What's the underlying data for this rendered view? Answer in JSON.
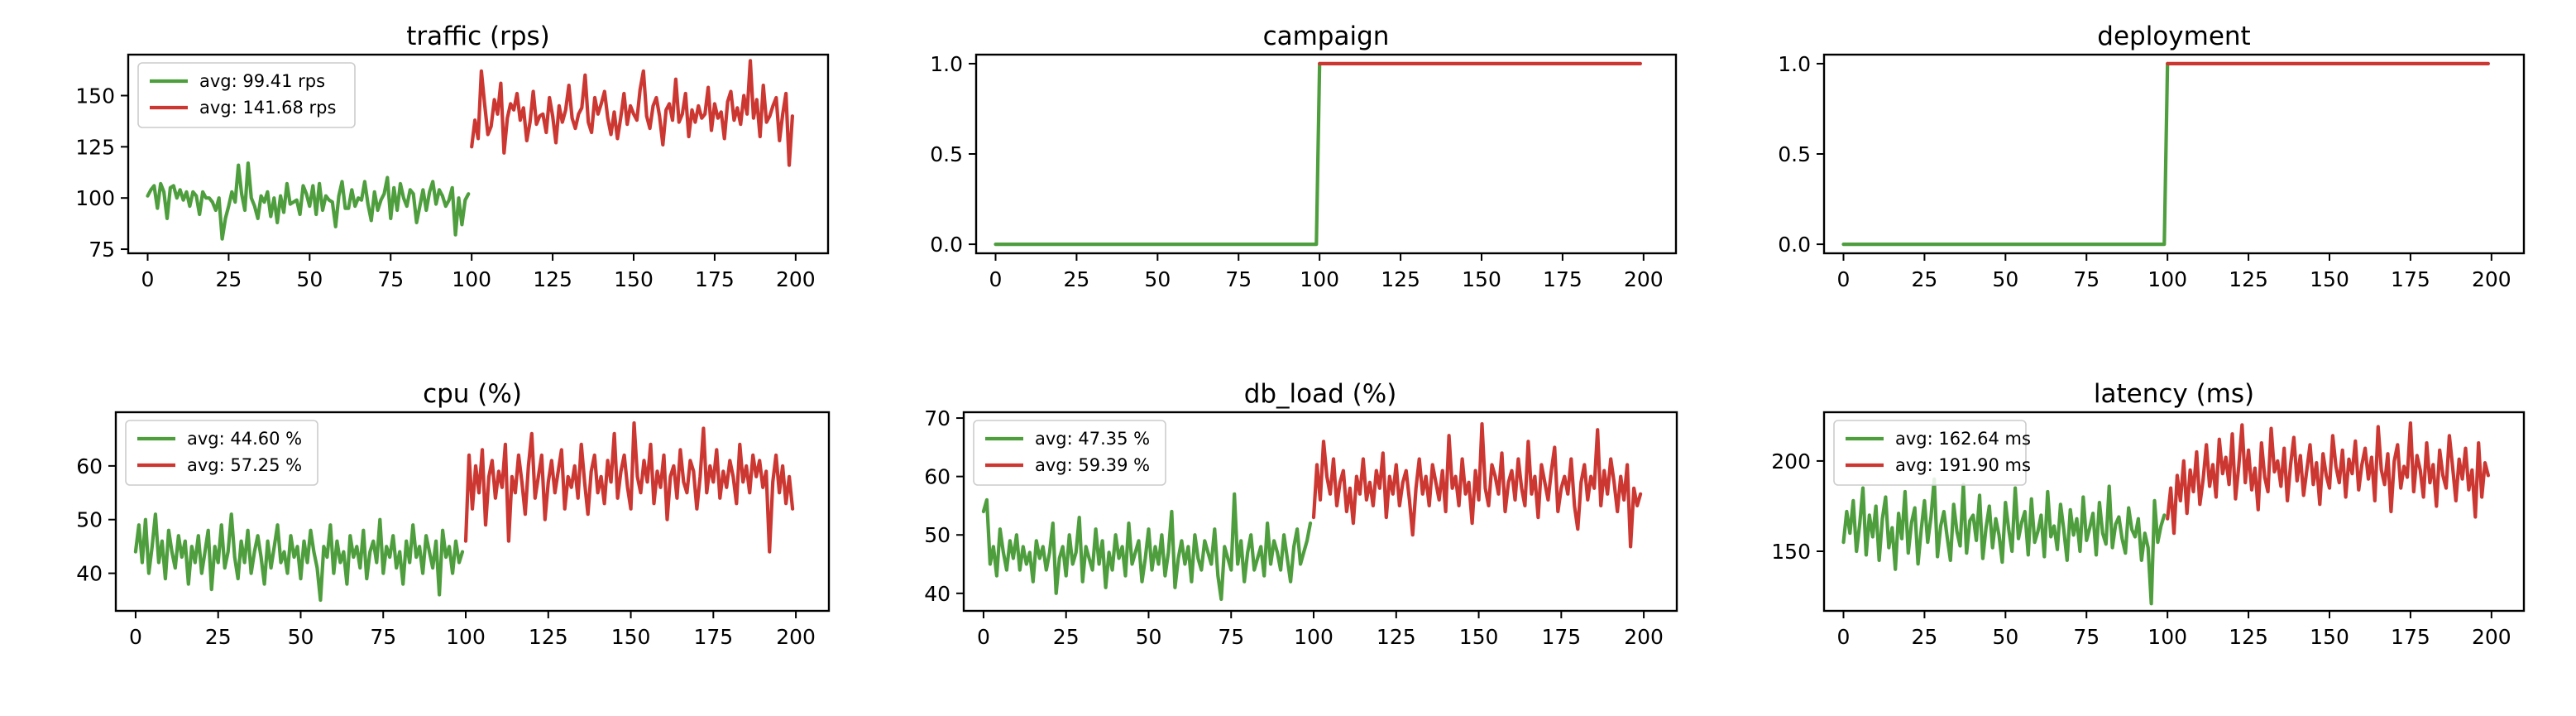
{
  "colors": {
    "before": "#4e9e3e",
    "after": "#cc3732"
  },
  "chart_data": [
    {
      "type": "line",
      "title": "traffic (rps)",
      "xlim": [
        -6,
        210
      ],
      "ylim": [
        73,
        170
      ],
      "xticks": [
        0,
        25,
        50,
        75,
        100,
        125,
        150,
        175,
        200
      ],
      "yticks": [
        75,
        100,
        125,
        150
      ],
      "legend": "top-left",
      "series": [
        {
          "name": "avg: 99.41 rps",
          "color": "#4e9e3e",
          "x_start": 0,
          "values": [
            101,
            104,
            106,
            95,
            107,
            103,
            90,
            105,
            106,
            100,
            104,
            99,
            103,
            96,
            103,
            101,
            92,
            103,
            100,
            100,
            98,
            94,
            100,
            80,
            90,
            96,
            103,
            98,
            116,
            102,
            94,
            117,
            100,
            96,
            90,
            101,
            98,
            103,
            91,
            100,
            88,
            101,
            93,
            107,
            97,
            98,
            99,
            92,
            106,
            102,
            96,
            106,
            92,
            107,
            94,
            101,
            99,
            98,
            86,
            101,
            108,
            95,
            95,
            104,
            96,
            100,
            99,
            108,
            97,
            89,
            103,
            94,
            99,
            102,
            110,
            90,
            105,
            94,
            107,
            100,
            96,
            104,
            102,
            88,
            96,
            104,
            94,
            103,
            108,
            97,
            104,
            101,
            96,
            99,
            105,
            82,
            100,
            87,
            99,
            102
          ]
        },
        {
          "name": "avg: 141.68 rps",
          "color": "#cc3732",
          "x_start": 100,
          "values": [
            125,
            138,
            129,
            162,
            146,
            131,
            135,
            148,
            141,
            156,
            122,
            139,
            146,
            143,
            151,
            138,
            144,
            128,
            137,
            152,
            136,
            140,
            141,
            132,
            149,
            140,
            127,
            145,
            137,
            143,
            155,
            139,
            134,
            141,
            144,
            160,
            137,
            132,
            149,
            141,
            146,
            152,
            139,
            131,
            142,
            129,
            139,
            151,
            136,
            145,
            141,
            138,
            153,
            162,
            140,
            134,
            145,
            149,
            140,
            126,
            143,
            146,
            138,
            158,
            137,
            141,
            151,
            130,
            143,
            137,
            145,
            139,
            141,
            154,
            133,
            146,
            139,
            142,
            129,
            147,
            152,
            138,
            144,
            136,
            150,
            141,
            167,
            139,
            148,
            130,
            155,
            137,
            140,
            145,
            149,
            128,
            141,
            151,
            116,
            140
          ]
        }
      ]
    },
    {
      "type": "line",
      "title": "campaign",
      "xlim": [
        -6,
        210
      ],
      "ylim": [
        -0.05,
        1.05
      ],
      "xticks": [
        0,
        25,
        50,
        75,
        100,
        125,
        150,
        175,
        200
      ],
      "yticks": [
        0.0,
        0.5,
        1.0
      ],
      "ytick_labels": [
        "0.0",
        "0.5",
        "1.0"
      ],
      "series": [
        {
          "color": "#4e9e3e",
          "points": [
            [
              0,
              0
            ],
            [
              99,
              0
            ],
            [
              100,
              1
            ]
          ]
        },
        {
          "color": "#cc3732",
          "points": [
            [
              100,
              1
            ],
            [
              199,
              1
            ]
          ]
        }
      ]
    },
    {
      "type": "line",
      "title": "deployment",
      "xlim": [
        -6,
        210
      ],
      "ylim": [
        -0.05,
        1.05
      ],
      "xticks": [
        0,
        25,
        50,
        75,
        100,
        125,
        150,
        175,
        200
      ],
      "yticks": [
        0.0,
        0.5,
        1.0
      ],
      "ytick_labels": [
        "0.0",
        "0.5",
        "1.0"
      ],
      "series": [
        {
          "color": "#4e9e3e",
          "points": [
            [
              0,
              0
            ],
            [
              99,
              0
            ],
            [
              100,
              1
            ]
          ]
        },
        {
          "color": "#cc3732",
          "points": [
            [
              100,
              1
            ],
            [
              199,
              1
            ]
          ]
        }
      ]
    },
    {
      "type": "line",
      "title": "cpu (%)",
      "xlim": [
        -6,
        210
      ],
      "ylim": [
        33,
        70
      ],
      "xticks": [
        0,
        25,
        50,
        75,
        100,
        125,
        150,
        175,
        200
      ],
      "yticks": [
        40,
        50,
        60
      ],
      "legend": "top-left",
      "series": [
        {
          "name": "avg: 44.60 %",
          "color": "#4e9e3e",
          "x_start": 0,
          "values": [
            44,
            49,
            42,
            50,
            40,
            45,
            51,
            42,
            46,
            39,
            48,
            44,
            41,
            47,
            43,
            46,
            38,
            45,
            42,
            47,
            40,
            44,
            48,
            37,
            45,
            42,
            49,
            41,
            44,
            51,
            43,
            39,
            46,
            42,
            48,
            40,
            44,
            47,
            43,
            38,
            46,
            41,
            45,
            49,
            42,
            44,
            40,
            47,
            43,
            45,
            39,
            46,
            42,
            48,
            44,
            41,
            35,
            45,
            43,
            49,
            40,
            46,
            42,
            44,
            38,
            47,
            43,
            45,
            41,
            48,
            39,
            44,
            46,
            42,
            50,
            40,
            45,
            43,
            47,
            41,
            44,
            38,
            46,
            42,
            49,
            43,
            45,
            40,
            47,
            44,
            41,
            46,
            36,
            48,
            43,
            45,
            40,
            46,
            42,
            44
          ]
        },
        {
          "name": "avg: 57.25 %",
          "color": "#cc3732",
          "x_start": 100,
          "values": [
            46,
            62,
            52,
            60,
            55,
            63,
            49,
            58,
            61,
            54,
            59,
            56,
            64,
            46,
            58,
            55,
            62,
            57,
            51,
            60,
            66,
            54,
            58,
            62,
            50,
            57,
            61,
            55,
            59,
            63,
            52,
            58,
            56,
            60,
            54,
            64,
            57,
            51,
            59,
            62,
            55,
            58,
            53,
            61,
            57,
            66,
            54,
            59,
            62,
            56,
            52,
            68,
            58,
            55,
            61,
            57,
            64,
            53,
            59,
            56,
            62,
            50,
            58,
            60,
            54,
            63,
            57,
            55,
            61,
            59,
            52,
            58,
            67,
            55,
            60,
            57,
            63,
            54,
            59,
            56,
            61,
            58,
            53,
            64,
            57,
            60,
            55,
            62,
            58,
            61,
            56,
            59,
            44,
            57,
            62,
            55,
            60,
            53,
            58,
            52
          ]
        }
      ]
    },
    {
      "type": "line",
      "title": "db_load (%)",
      "xlim": [
        -6,
        210
      ],
      "ylim": [
        37,
        71
      ],
      "xticks": [
        0,
        25,
        50,
        75,
        100,
        125,
        150,
        175,
        200
      ],
      "yticks": [
        40,
        50,
        60,
        70
      ],
      "legend": "top-left",
      "series": [
        {
          "name": "avg: 47.35 %",
          "color": "#4e9e3e",
          "x_start": 0,
          "values": [
            54,
            56,
            45,
            48,
            43,
            51,
            47,
            44,
            49,
            46,
            50,
            44,
            48,
            45,
            47,
            42,
            49,
            46,
            48,
            44,
            47,
            52,
            40,
            46,
            48,
            43,
            50,
            45,
            47,
            53,
            42,
            48,
            46,
            44,
            51,
            45,
            49,
            41,
            47,
            44,
            50,
            46,
            48,
            43,
            52,
            45,
            47,
            49,
            42,
            46,
            51,
            44,
            48,
            45,
            50,
            43,
            47,
            54,
            41,
            46,
            49,
            45,
            48,
            42,
            50,
            46,
            44,
            49,
            47,
            45,
            51,
            43,
            39,
            48,
            46,
            44,
            57,
            45,
            49,
            42,
            47,
            50,
            44,
            46,
            48,
            43,
            52,
            45,
            49,
            47,
            44,
            50,
            46,
            42,
            48,
            51,
            45,
            47,
            49,
            52
          ]
        },
        {
          "name": "avg: 59.39 %",
          "color": "#cc3732",
          "x_start": 100,
          "values": [
            53,
            62,
            56,
            66,
            60,
            57,
            63,
            55,
            59,
            61,
            54,
            58,
            52,
            60,
            57,
            63,
            56,
            59,
            55,
            61,
            58,
            64,
            53,
            60,
            57,
            62,
            55,
            59,
            61,
            56,
            50,
            58,
            63,
            57,
            60,
            55,
            62,
            59,
            56,
            61,
            54,
            67,
            58,
            60,
            55,
            63,
            57,
            59,
            52,
            61,
            56,
            69,
            58,
            55,
            62,
            60,
            57,
            64,
            54,
            59,
            61,
            56,
            63,
            58,
            55,
            66,
            57,
            60,
            53,
            62,
            59,
            56,
            61,
            65,
            54,
            58,
            60,
            57,
            63,
            55,
            51,
            59,
            62,
            56,
            60,
            58,
            68,
            55,
            61,
            57,
            63,
            59,
            54,
            60,
            56,
            62,
            48,
            58,
            55,
            57
          ]
        }
      ]
    },
    {
      "type": "line",
      "title": "latency (ms)",
      "xlim": [
        -6,
        210
      ],
      "ylim": [
        117,
        227
      ],
      "xticks": [
        0,
        25,
        50,
        75,
        100,
        125,
        150,
        175,
        200
      ],
      "yticks": [
        150,
        200
      ],
      "legend": "top-left",
      "series": [
        {
          "name": "avg: 162.64 ms",
          "color": "#4e9e3e",
          "x_start": 0,
          "values": [
            155,
            172,
            160,
            178,
            150,
            165,
            185,
            148,
            170,
            158,
            175,
            145,
            168,
            180,
            152,
            163,
            140,
            171,
            157,
            183,
            149,
            166,
            174,
            143,
            162,
            178,
            155,
            169,
            190,
            147,
            164,
            172,
            158,
            145,
            176,
            161,
            153,
            187,
            149,
            167,
            170,
            156,
            181,
            146,
            163,
            175,
            152,
            168,
            159,
            144,
            177,
            162,
            150,
            185,
            157,
            166,
            172,
            148,
            179,
            155,
            161,
            170,
            147,
            183,
            158,
            164,
            151,
            176,
            162,
            145,
            173,
            159,
            168,
            150,
            180,
            156,
            163,
            171,
            148,
            177,
            160,
            154,
            186,
            152,
            165,
            169,
            157,
            149,
            174,
            162,
            158,
            168,
            145,
            160,
            152,
            121,
            178,
            155,
            164,
            170
          ]
        },
        {
          "name": "avg: 191.90 ms",
          "color": "#cc3732",
          "x_start": 100,
          "values": [
            168,
            185,
            160,
            192,
            178,
            200,
            171,
            195,
            183,
            205,
            176,
            190,
            209,
            186,
            198,
            180,
            212,
            193,
            202,
            187,
            215,
            179,
            197,
            220,
            188,
            206,
            184,
            196,
            173,
            210,
            191,
            183,
            218,
            194,
            200,
            186,
            207,
            178,
            198,
            213,
            189,
            203,
            181,
            195,
            209,
            187,
            199,
            176,
            204,
            192,
            185,
            214,
            197,
            188,
            206,
            180,
            201,
            193,
            211,
            184,
            198,
            207,
            190,
            202,
            178,
            219,
            195,
            187,
            204,
            172,
            200,
            209,
            185,
            197,
            191,
            221,
            183,
            203,
            195,
            180,
            210,
            188,
            198,
            175,
            206,
            192,
            185,
            214,
            197,
            178,
            201,
            190,
            207,
            184,
            195,
            169,
            210,
            180,
            199,
            192
          ]
        }
      ]
    }
  ]
}
